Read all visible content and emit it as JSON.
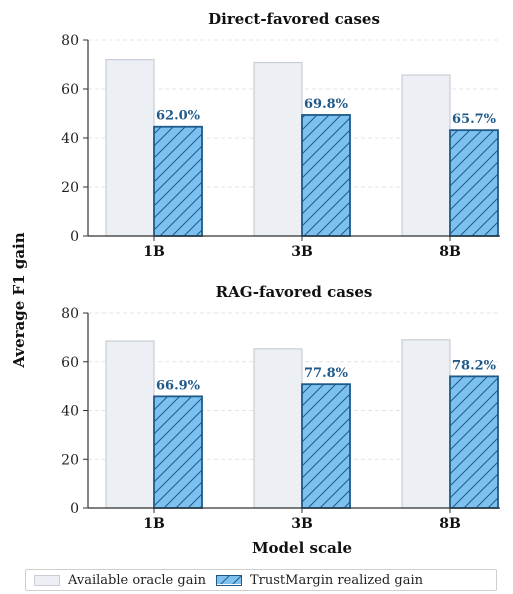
{
  "colors": {
    "oracle_fill": "#eceff3",
    "oracle_edge": "#c9ced6",
    "trust_fill": "#7cc1ef",
    "trust_edge": "#1f5a8a",
    "label_text": "#1f5a8a",
    "grid": "#dcdcdc"
  },
  "shared": {
    "ylabel": "Average F1 gain",
    "xlabel": "Model scale",
    "legend": {
      "oracle": "Available oracle gain",
      "trust": "TrustMargin realized gain"
    }
  },
  "chart_data": [
    {
      "type": "bar",
      "title": "Direct-favored cases",
      "categories": [
        "1B",
        "3B",
        "8B"
      ],
      "ylim": [
        0,
        80
      ],
      "yticks": [
        0,
        20,
        40,
        60,
        80
      ],
      "grid": true,
      "series": [
        {
          "name": "Available oracle gain",
          "values": [
            72.0,
            70.8,
            65.7
          ],
          "hatch": false
        },
        {
          "name": "TrustMargin realized gain",
          "values": [
            44.6,
            49.4,
            43.2
          ],
          "hatch": true
        }
      ],
      "annotations": [
        "62.0%",
        "69.8%",
        "65.7%"
      ]
    },
    {
      "type": "bar",
      "title": "RAG-favored cases",
      "categories": [
        "1B",
        "3B",
        "8B"
      ],
      "ylim": [
        0,
        80
      ],
      "yticks": [
        0,
        20,
        40,
        60,
        80
      ],
      "grid": true,
      "series": [
        {
          "name": "Available oracle gain",
          "values": [
            68.5,
            65.3,
            69.0
          ],
          "hatch": false
        },
        {
          "name": "TrustMargin realized gain",
          "values": [
            45.8,
            50.8,
            54.0
          ],
          "hatch": true
        }
      ],
      "annotations": [
        "66.9%",
        "77.8%",
        "78.2%"
      ]
    }
  ]
}
